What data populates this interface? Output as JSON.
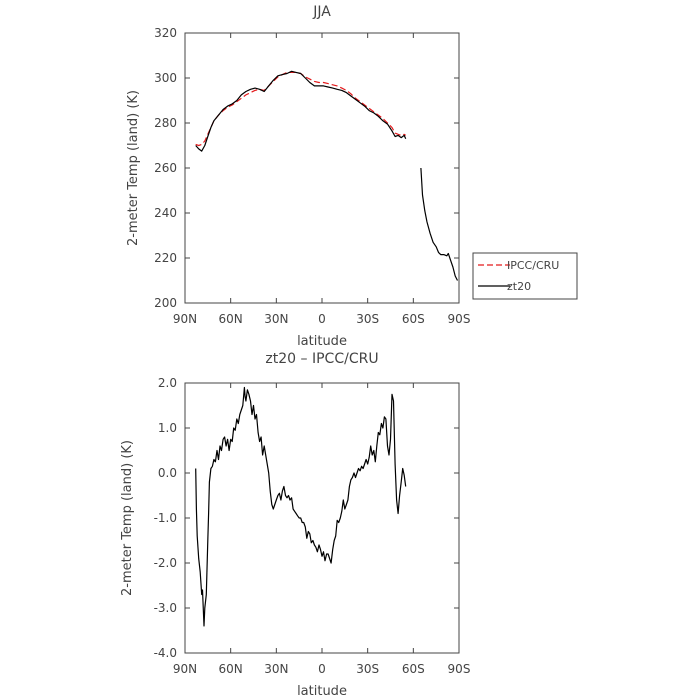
{
  "chart_data": [
    {
      "type": "line",
      "title": "JJA",
      "xlabel": "latitude",
      "ylabel": "2-meter Temp (land) (K)",
      "xlim": [
        90,
        -90
      ],
      "ylim": [
        200,
        320
      ],
      "xticks": [
        90,
        60,
        30,
        0,
        -30,
        -60,
        -90
      ],
      "xtick_labels": [
        "90N",
        "60N",
        "30N",
        "0",
        "30S",
        "60S",
        "90S"
      ],
      "yticks": [
        200,
        220,
        240,
        260,
        280,
        300,
        320
      ],
      "ytick_labels": [
        "200",
        "220",
        "240",
        "260",
        "280",
        "300",
        "320"
      ],
      "legend": {
        "position": "right-outside",
        "entries": [
          "IPCC/CRU",
          "zt20"
        ]
      },
      "series": [
        {
          "name": "IPCC/CRU",
          "color": "#e41a1c",
          "dash": "dashed",
          "points": [
            [
              83,
              270.5
            ],
            [
              81,
              270
            ],
            [
              79,
              270.5
            ],
            [
              77,
              272
            ],
            [
              75,
              275
            ],
            [
              73,
              278
            ],
            [
              71,
              281
            ],
            [
              68,
              283.5
            ],
            [
              65,
              285.5
            ],
            [
              62,
              287
            ],
            [
              59,
              288
            ],
            [
              56,
              289.5
            ],
            [
              53,
              291
            ],
            [
              50,
              292.5
            ],
            [
              47,
              293.5
            ],
            [
              44,
              294.5
            ],
            [
              41,
              295
            ],
            [
              38,
              294.5
            ],
            [
              35,
              296.5
            ],
            [
              32,
              298.5
            ],
            [
              29,
              300.5
            ],
            [
              26,
              301.5
            ],
            [
              23,
              302.5
            ],
            [
              20,
              302.5
            ],
            [
              17,
              302.5
            ],
            [
              14,
              302
            ],
            [
              11,
              300.5
            ],
            [
              8,
              299.5
            ],
            [
              5,
              298.5
            ],
            [
              2,
              298
            ],
            [
              -1,
              298
            ],
            [
              -4,
              297.5
            ],
            [
              -7,
              297
            ],
            [
              -10,
              296.5
            ],
            [
              -13,
              295.5
            ],
            [
              -16,
              294.5
            ],
            [
              -19,
              293
            ],
            [
              -22,
              291
            ],
            [
              -25,
              289.5
            ],
            [
              -28,
              288
            ],
            [
              -31,
              286.5
            ],
            [
              -34,
              285
            ],
            [
              -37,
              283.5
            ],
            [
              -40,
              282
            ],
            [
              -43,
              280
            ],
            [
              -46,
              278
            ],
            [
              -48,
              275.5
            ],
            [
              -50,
              275
            ],
            [
              -52,
              274.5
            ],
            [
              -54,
              275
            ],
            [
              -55,
              274.5
            ]
          ]
        },
        {
          "name": "zt20",
          "color": "#000000",
          "dash": "solid",
          "points": [
            [
              83,
              270
            ],
            [
              81,
              268.5
            ],
            [
              79,
              267.5
            ],
            [
              77,
              270
            ],
            [
              75,
              274
            ],
            [
              73,
              278
            ],
            [
              71,
              281
            ],
            [
              68,
              283.5
            ],
            [
              65,
              286
            ],
            [
              62,
              287.5
            ],
            [
              59,
              288.5
            ],
            [
              56,
              290
            ],
            [
              53,
              292.5
            ],
            [
              50,
              294
            ],
            [
              47,
              295
            ],
            [
              44,
              295.5
            ],
            [
              41,
              295
            ],
            [
              38,
              294
            ],
            [
              35,
              296.5
            ],
            [
              32,
              299
            ],
            [
              29,
              301
            ],
            [
              26,
              301.5
            ],
            [
              23,
              302
            ],
            [
              20,
              303
            ],
            [
              17,
              302.5
            ],
            [
              14,
              302
            ],
            [
              11,
              300
            ],
            [
              8,
              298
            ],
            [
              5,
              296.5
            ],
            [
              2,
              296.5
            ],
            [
              -1,
              296.5
            ],
            [
              -4,
              296
            ],
            [
              -7,
              295.5
            ],
            [
              -10,
              295
            ],
            [
              -13,
              294.5
            ],
            [
              -16,
              293.5
            ],
            [
              -19,
              292
            ],
            [
              -22,
              290.5
            ],
            [
              -25,
              289
            ],
            [
              -28,
              287.5
            ],
            [
              -31,
              285.5
            ],
            [
              -34,
              284.5
            ],
            [
              -37,
              283
            ],
            [
              -40,
              281
            ],
            [
              -43,
              279.5
            ],
            [
              -46,
              276.5
            ],
            [
              -48,
              274
            ],
            [
              -50,
              274.5
            ],
            [
              -52,
              273.5
            ],
            [
              -54,
              274.5
            ],
            [
              -55,
              273
            ]
          ]
        },
        {
          "name": "zt20",
          "color": "#000000",
          "dash": "solid",
          "points": [
            [
              -65,
              260
            ],
            [
              -66,
              248
            ],
            [
              -67.5,
              241
            ],
            [
              -69,
              236
            ],
            [
              -71,
              231
            ],
            [
              -73,
              227
            ],
            [
              -75,
              225
            ],
            [
              -76.5,
              222.5
            ],
            [
              -78,
              221.5
            ],
            [
              -80,
              221.5
            ],
            [
              -82,
              221
            ],
            [
              -83,
              222
            ],
            [
              -84.5,
              219
            ],
            [
              -86,
              216
            ],
            [
              -87.5,
              212
            ],
            [
              -89,
              210
            ]
          ]
        }
      ]
    },
    {
      "type": "line",
      "title": "zt20 – IPCC/CRU",
      "xlabel": "latitude",
      "ylabel": "2-meter Temp (land) (K)",
      "xlim": [
        90,
        -90
      ],
      "ylim": [
        -4.0,
        2.0
      ],
      "xticks": [
        90,
        60,
        30,
        0,
        -30,
        -60,
        -90
      ],
      "xtick_labels": [
        "90N",
        "60N",
        "30N",
        "0",
        "30S",
        "60S",
        "90S"
      ],
      "yticks": [
        -4.0,
        -3.0,
        -2.0,
        -1.0,
        0.0,
        1.0,
        2.0
      ],
      "ytick_labels": [
        "-4.0",
        "-3.0",
        "-2.0",
        "-1.0",
        "0.0",
        "1.0",
        "2.0"
      ],
      "series": [
        {
          "color": "#000000",
          "dash": "solid",
          "points": [
            [
              83,
              0.1
            ],
            [
              82.5,
              -0.8
            ],
            [
              82,
              -1.4
            ],
            [
              81,
              -1.9
            ],
            [
              80,
              -2.2
            ],
            [
              79,
              -2.7
            ],
            [
              78.5,
              -2.6
            ],
            [
              77.5,
              -3.4
            ],
            [
              77,
              -3.0
            ],
            [
              76,
              -2.7
            ],
            [
              75,
              -1.5
            ],
            [
              74.5,
              -0.9
            ],
            [
              74,
              -0.2
            ],
            [
              73,
              0.1
            ],
            [
              72,
              0.15
            ],
            [
              71,
              0.3
            ],
            [
              70,
              0.25
            ],
            [
              69,
              0.5
            ],
            [
              68,
              0.3
            ],
            [
              67,
              0.6
            ],
            [
              66,
              0.5
            ],
            [
              65,
              0.75
            ],
            [
              64,
              0.8
            ],
            [
              63,
              0.6
            ],
            [
              62,
              0.75
            ],
            [
              61,
              0.5
            ],
            [
              60,
              0.75
            ],
            [
              59,
              0.7
            ],
            [
              58,
              1.0
            ],
            [
              57,
              0.95
            ],
            [
              56,
              1.2
            ],
            [
              55,
              1.1
            ],
            [
              54,
              1.3
            ],
            [
              53,
              1.4
            ],
            [
              52,
              1.5
            ],
            [
              51,
              1.9
            ],
            [
              50.5,
              1.7
            ],
            [
              50,
              1.6
            ],
            [
              49,
              1.85
            ],
            [
              48,
              1.75
            ],
            [
              47,
              1.6
            ],
            [
              46,
              1.3
            ],
            [
              45,
              1.5
            ],
            [
              44,
              1.2
            ],
            [
              43,
              1.3
            ],
            [
              42,
              0.9
            ],
            [
              41,
              0.7
            ],
            [
              40,
              0.8
            ],
            [
              39,
              0.4
            ],
            [
              38,
              0.6
            ],
            [
              37,
              0.4
            ],
            [
              36,
              0.2
            ],
            [
              35,
              0.0
            ],
            [
              34,
              -0.4
            ],
            [
              33,
              -0.7
            ],
            [
              32,
              -0.8
            ],
            [
              31,
              -0.7
            ],
            [
              30,
              -0.6
            ],
            [
              29,
              -0.5
            ],
            [
              28,
              -0.45
            ],
            [
              27,
              -0.6
            ],
            [
              26,
              -0.4
            ],
            [
              25,
              -0.3
            ],
            [
              24,
              -0.5
            ],
            [
              23,
              -0.55
            ],
            [
              22,
              -0.5
            ],
            [
              21,
              -0.6
            ],
            [
              20,
              -0.55
            ],
            [
              19,
              -0.8
            ],
            [
              18,
              -0.85
            ],
            [
              17,
              -0.9
            ],
            [
              16,
              -0.95
            ],
            [
              15,
              -1.0
            ],
            [
              14,
              -1.0
            ],
            [
              13,
              -1.1
            ],
            [
              12,
              -1.1
            ],
            [
              11,
              -1.2
            ],
            [
              10,
              -1.45
            ],
            [
              9,
              -1.3
            ],
            [
              8,
              -1.35
            ],
            [
              7,
              -1.55
            ],
            [
              6,
              -1.5
            ],
            [
              5,
              -1.6
            ],
            [
              4,
              -1.65
            ],
            [
              3,
              -1.75
            ],
            [
              2,
              -1.6
            ],
            [
              1,
              -1.7
            ],
            [
              0,
              -1.85
            ],
            [
              -1,
              -1.75
            ],
            [
              -2,
              -1.95
            ],
            [
              -3,
              -1.8
            ],
            [
              -4,
              -1.8
            ],
            [
              -5,
              -1.9
            ],
            [
              -6,
              -2.0
            ],
            [
              -7,
              -1.7
            ],
            [
              -8,
              -1.5
            ],
            [
              -9,
              -1.4
            ],
            [
              -10,
              -1.05
            ],
            [
              -11,
              -1.1
            ],
            [
              -12,
              -1.0
            ],
            [
              -13,
              -0.85
            ],
            [
              -14,
              -0.6
            ],
            [
              -15,
              -0.8
            ],
            [
              -16,
              -0.7
            ],
            [
              -17,
              -0.6
            ],
            [
              -18,
              -0.3
            ],
            [
              -19,
              -0.15
            ],
            [
              -20,
              -0.1
            ],
            [
              -21,
              0.0
            ],
            [
              -22,
              -0.1
            ],
            [
              -23,
              0.0
            ],
            [
              -24,
              0.1
            ],
            [
              -25,
              0.05
            ],
            [
              -26,
              0.15
            ],
            [
              -27,
              0.1
            ],
            [
              -28,
              0.2
            ],
            [
              -29,
              0.3
            ],
            [
              -30,
              0.2
            ],
            [
              -31,
              0.35
            ],
            [
              -32,
              0.6
            ],
            [
              -33,
              0.4
            ],
            [
              -34,
              0.5
            ],
            [
              -35,
              0.25
            ],
            [
              -36,
              0.6
            ],
            [
              -37,
              0.9
            ],
            [
              -38,
              0.85
            ],
            [
              -39,
              1.1
            ],
            [
              -40,
              1.0
            ],
            [
              -41,
              1.25
            ],
            [
              -42,
              1.2
            ],
            [
              -43,
              0.6
            ],
            [
              -44,
              0.4
            ],
            [
              -45,
              0.75
            ],
            [
              -46,
              1.75
            ],
            [
              -47,
              1.6
            ],
            [
              -48,
              0.2
            ],
            [
              -49,
              -0.6
            ],
            [
              -50,
              -0.9
            ],
            [
              -51,
              -0.5
            ],
            [
              -52,
              -0.2
            ],
            [
              -53,
              0.1
            ],
            [
              -54,
              -0.05
            ],
            [
              -55,
              -0.3
            ]
          ]
        }
      ]
    }
  ]
}
